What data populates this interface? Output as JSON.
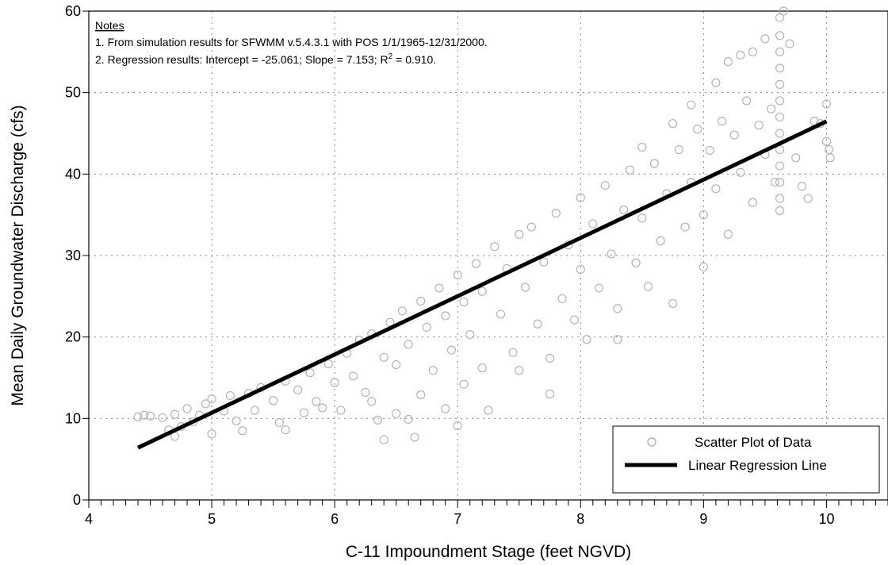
{
  "chart_data": {
    "type": "scatter",
    "xlabel": "C-11 Impoundment Stage (feet NGVD)",
    "ylabel": "Mean Daily Groundwater Discharge (cfs)",
    "xlim": [
      4,
      10.5
    ],
    "ylim": [
      0,
      60
    ],
    "x_ticks": [
      "4",
      "5",
      "6",
      "7",
      "8",
      "9",
      "10"
    ],
    "y_ticks": [
      "0",
      "10",
      "20",
      "30",
      "40",
      "50",
      "60"
    ],
    "grid": true,
    "legend_position": "bottom-right",
    "notes": {
      "heading": "Notes",
      "line1": "1. From simulation results for SFWMM v.5.4.3.1 with POS 1/1/1965-12/31/2000.",
      "line2_prefix": "2. Regression results: Intercept = -25.061; Slope = 7.153; R",
      "line2_sup": "2",
      "line2_suffix": " = 0.910."
    },
    "series": [
      {
        "name": "Scatter Plot of Data",
        "marker": "open-circle",
        "color": "#b4b4b4",
        "points": [
          [
            4.4,
            10.2
          ],
          [
            4.45,
            10.4
          ],
          [
            4.5,
            10.3
          ],
          [
            4.6,
            10.1
          ],
          [
            4.65,
            8.6
          ],
          [
            4.7,
            7.8
          ],
          [
            4.7,
            10.5
          ],
          [
            4.75,
            9.0
          ],
          [
            4.8,
            11.2
          ],
          [
            4.85,
            9.6
          ],
          [
            4.9,
            10.4
          ],
          [
            4.95,
            11.8
          ],
          [
            5.0,
            8.1
          ],
          [
            5.0,
            12.4
          ],
          [
            5.1,
            10.9
          ],
          [
            5.15,
            12.8
          ],
          [
            5.2,
            9.7
          ],
          [
            5.25,
            8.5
          ],
          [
            5.3,
            13.1
          ],
          [
            5.35,
            11.0
          ],
          [
            5.4,
            13.8
          ],
          [
            5.5,
            12.2
          ],
          [
            5.55,
            9.5
          ],
          [
            5.6,
            14.6
          ],
          [
            5.6,
            8.6
          ],
          [
            5.7,
            13.5
          ],
          [
            5.75,
            10.7
          ],
          [
            5.8,
            15.6
          ],
          [
            5.85,
            12.1
          ],
          [
            5.9,
            11.3
          ],
          [
            5.95,
            16.7
          ],
          [
            6.0,
            14.4
          ],
          [
            6.05,
            11.0
          ],
          [
            6.1,
            18.0
          ],
          [
            6.15,
            15.2
          ],
          [
            6.2,
            19.6
          ],
          [
            6.25,
            13.2
          ],
          [
            6.3,
            12.1
          ],
          [
            6.3,
            20.4
          ],
          [
            6.35,
            9.8
          ],
          [
            6.4,
            17.5
          ],
          [
            6.4,
            7.4
          ],
          [
            6.45,
            21.8
          ],
          [
            6.5,
            16.6
          ],
          [
            6.5,
            10.6
          ],
          [
            6.55,
            23.2
          ],
          [
            6.6,
            19.1
          ],
          [
            6.6,
            9.9
          ],
          [
            6.65,
            7.7
          ],
          [
            6.7,
            24.4
          ],
          [
            6.7,
            12.9
          ],
          [
            6.75,
            21.2
          ],
          [
            6.8,
            15.9
          ],
          [
            6.85,
            26.0
          ],
          [
            6.9,
            22.6
          ],
          [
            6.9,
            11.2
          ],
          [
            6.95,
            18.4
          ],
          [
            7.0,
            27.6
          ],
          [
            7.0,
            9.1
          ],
          [
            7.05,
            24.3
          ],
          [
            7.05,
            14.2
          ],
          [
            7.1,
            20.3
          ],
          [
            7.15,
            29.0
          ],
          [
            7.2,
            25.6
          ],
          [
            7.2,
            16.2
          ],
          [
            7.25,
            11.0
          ],
          [
            7.3,
            31.1
          ],
          [
            7.35,
            22.8
          ],
          [
            7.4,
            28.4
          ],
          [
            7.45,
            18.1
          ],
          [
            7.5,
            32.6
          ],
          [
            7.5,
            15.9
          ],
          [
            7.55,
            26.1
          ],
          [
            7.6,
            33.5
          ],
          [
            7.65,
            21.6
          ],
          [
            7.7,
            29.2
          ],
          [
            7.75,
            17.4
          ],
          [
            7.75,
            13.0
          ],
          [
            7.8,
            35.2
          ],
          [
            7.85,
            24.7
          ],
          [
            7.9,
            31.3
          ],
          [
            7.95,
            22.1
          ],
          [
            8.0,
            37.1
          ],
          [
            8.0,
            28.3
          ],
          [
            8.05,
            19.7
          ],
          [
            8.1,
            33.9
          ],
          [
            8.15,
            26.0
          ],
          [
            8.2,
            38.6
          ],
          [
            8.25,
            30.2
          ],
          [
            8.3,
            23.5
          ],
          [
            8.3,
            19.7
          ],
          [
            8.35,
            35.6
          ],
          [
            8.4,
            40.5
          ],
          [
            8.45,
            29.1
          ],
          [
            8.5,
            43.3
          ],
          [
            8.5,
            34.6
          ],
          [
            8.55,
            26.2
          ],
          [
            8.6,
            41.3
          ],
          [
            8.65,
            31.8
          ],
          [
            8.7,
            37.6
          ],
          [
            8.75,
            24.1
          ],
          [
            8.75,
            46.2
          ],
          [
            8.8,
            43.0
          ],
          [
            8.85,
            33.5
          ],
          [
            8.9,
            48.5
          ],
          [
            8.9,
            39.0
          ],
          [
            8.95,
            45.5
          ],
          [
            9.0,
            35.0
          ],
          [
            9.0,
            28.6
          ],
          [
            9.05,
            42.9
          ],
          [
            9.1,
            51.2
          ],
          [
            9.1,
            38.2
          ],
          [
            9.15,
            46.5
          ],
          [
            9.2,
            53.8
          ],
          [
            9.2,
            32.6
          ],
          [
            9.25,
            44.8
          ],
          [
            9.3,
            40.2
          ],
          [
            9.3,
            54.6
          ],
          [
            9.35,
            49.0
          ],
          [
            9.4,
            36.5
          ],
          [
            9.4,
            55.0
          ],
          [
            9.45,
            46.0
          ],
          [
            9.5,
            42.4
          ],
          [
            9.5,
            56.6
          ],
          [
            9.55,
            48.0
          ],
          [
            9.58,
            39.0
          ],
          [
            9.62,
            59.2
          ],
          [
            9.62,
            57.0
          ],
          [
            9.62,
            55.0
          ],
          [
            9.62,
            53.0
          ],
          [
            9.62,
            51.0
          ],
          [
            9.62,
            49.0
          ],
          [
            9.62,
            47.0
          ],
          [
            9.62,
            45.0
          ],
          [
            9.62,
            43.0
          ],
          [
            9.62,
            41.0
          ],
          [
            9.62,
            39.0
          ],
          [
            9.62,
            37.0
          ],
          [
            9.62,
            35.5
          ],
          [
            9.65,
            60.0
          ],
          [
            9.7,
            56.0
          ],
          [
            9.75,
            42.0
          ],
          [
            9.8,
            38.5
          ],
          [
            9.85,
            37.0
          ],
          [
            9.9,
            46.5
          ],
          [
            9.95,
            46.2
          ],
          [
            10.0,
            48.6
          ],
          [
            10.0,
            44.0
          ],
          [
            10.02,
            43.0
          ],
          [
            10.03,
            42.0
          ]
        ]
      },
      {
        "name": "Linear Regression Line",
        "type": "line",
        "color": "#000000",
        "points": [
          [
            4.4,
            6.41
          ],
          [
            10.0,
            46.47
          ]
        ]
      }
    ]
  }
}
